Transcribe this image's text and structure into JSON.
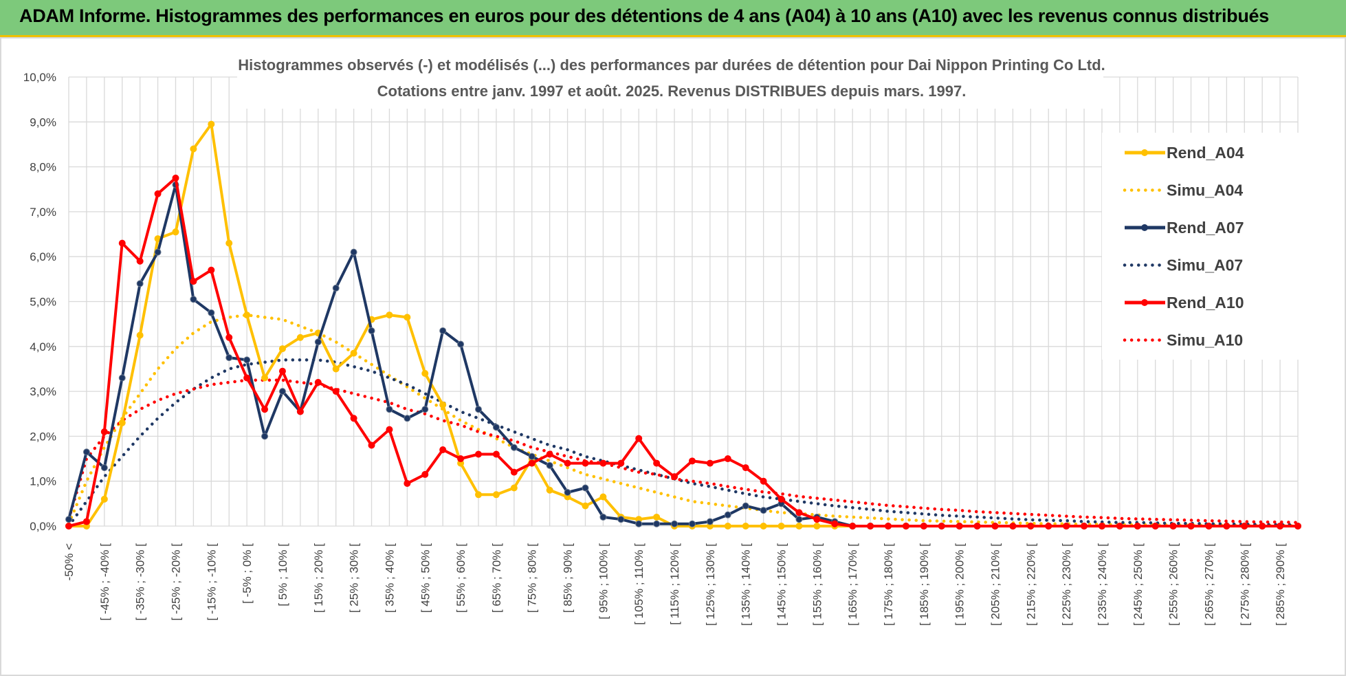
{
  "header": {
    "title": "ADAM Informe. Histogrammes des performances en euros pour des détentions de 4 ans (A04) à 10 ans (A10) avec les revenus connus distribués"
  },
  "colors": {
    "banner": "#7dc97b",
    "banner_border": "#f0c000",
    "A04": "#ffc000",
    "A07": "#1f3864",
    "A10": "#ff0000",
    "grid": "#d9d9d9"
  },
  "chart_data": {
    "type": "line",
    "title": "Histogrammes observés (-) et modélisés (...) des performances par durées de détention pour Dai Nippon Printing Co Ltd.",
    "subtitle": "Cotations entre janv. 1997 et août. 2025. Revenus DISTRIBUES depuis mars. 1997.",
    "xlabel": "",
    "ylabel": "",
    "ylim": [
      0,
      10
    ],
    "y_ticks": [
      "0,0%",
      "1,0%",
      "2,0%",
      "3,0%",
      "4,0%",
      "5,0%",
      "6,0%",
      "7,0%",
      "8,0%",
      "9,0%",
      "10,0%"
    ],
    "grid": true,
    "legend_position": "right",
    "x_tick_labels": [
      "-50% <",
      "[ -45% ; -40% [",
      "[ -35% ; -30% [",
      "[ -25% ; -20% [",
      "[ -15% ; -10% [",
      "[ -5% ; 0% [",
      "[ 5% ; 10% [",
      "[ 15% ; 20% [",
      "[ 25% ; 30% [",
      "[ 35% ; 40% [",
      "[ 45% ; 50% [",
      "[ 55% ; 60% [",
      "[ 65% ; 70% [",
      "[ 75% ; 80% [",
      "[ 85% ; 90% [",
      "[ 95% ; 100% [",
      "[ 105% ; 110% [",
      "[ 115% ; 120% [",
      "[ 125% ; 130% [",
      "[ 135% ; 140% [",
      "[ 145% ; 150% [",
      "[ 155% ; 160% [",
      "[ 165% ; 170% [",
      "[ 175% ; 180% [",
      "[ 185% ; 190% [",
      "[ 195% ; 200% [",
      "[ 205% ; 210% [",
      "[ 215% ; 220% [",
      "[ 225% ; 230% [",
      "[ 235% ; 240% [",
      "[ 245% ; 250% [",
      "[ 255% ; 260% [",
      "[ 265% ; 270% [",
      "[ 275% ; 280% [",
      "[ 285% ; 290% ["
    ],
    "series": [
      {
        "name": "Rend_A04",
        "style": "solid",
        "color": "#ffc000",
        "values": [
          0.0,
          0.0,
          0.6,
          2.3,
          4.25,
          6.4,
          6.55,
          8.4,
          8.95,
          6.3,
          4.7,
          3.3,
          3.95,
          4.2,
          4.3,
          3.5,
          3.85,
          4.6,
          4.7,
          4.65,
          3.4,
          2.7,
          1.4,
          0.7,
          0.7,
          0.85,
          1.5,
          0.8,
          0.65,
          0.45,
          0.65,
          0.2,
          0.15,
          0.2,
          0.0,
          0.0,
          0.0,
          0.0,
          0.0,
          0.0,
          0.0,
          0.0,
          0.0,
          0.0,
          0.0,
          0.0,
          0.0,
          0.0,
          0.0,
          0.0,
          0.0,
          0.0,
          0.0,
          0.0,
          0.0,
          0.0,
          0.0,
          0.0,
          0.0,
          0.0,
          0.0,
          0.0,
          0.0,
          0.0,
          0.0,
          0.0,
          0.0,
          0.0,
          0.0,
          0.0
        ]
      },
      {
        "name": "Simu_A04",
        "style": "dotted",
        "color": "#ffc000",
        "values": [
          0.05,
          1.0,
          1.75,
          2.4,
          2.95,
          3.5,
          3.95,
          4.3,
          4.55,
          4.65,
          4.7,
          4.65,
          4.6,
          4.45,
          4.3,
          4.1,
          3.85,
          3.6,
          3.35,
          3.1,
          2.85,
          2.6,
          2.35,
          2.15,
          1.95,
          1.75,
          1.6,
          1.45,
          1.3,
          1.15,
          1.05,
          0.95,
          0.85,
          0.75,
          0.65,
          0.55,
          0.5,
          0.45,
          0.4,
          0.35,
          0.3,
          0.28,
          0.25,
          0.22,
          0.2,
          0.18,
          0.16,
          0.14,
          0.12,
          0.11,
          0.1,
          0.09,
          0.08,
          0.07,
          0.06,
          0.05,
          0.05,
          0.04,
          0.04,
          0.03,
          0.03,
          0.03,
          0.02,
          0.02,
          0.02,
          0.02,
          0.01,
          0.01,
          0.01,
          0.01
        ]
      },
      {
        "name": "Rend_A07",
        "style": "solid",
        "color": "#1f3864",
        "values": [
          0.15,
          1.65,
          1.3,
          3.3,
          5.4,
          6.1,
          7.6,
          5.05,
          4.75,
          3.75,
          3.7,
          2.0,
          3.0,
          2.55,
          4.1,
          5.3,
          6.1,
          4.35,
          2.6,
          2.4,
          2.6,
          4.35,
          4.05,
          2.6,
          2.2,
          1.75,
          1.55,
          1.35,
          0.75,
          0.85,
          0.2,
          0.15,
          0.05,
          0.05,
          0.05,
          0.05,
          0.1,
          0.25,
          0.45,
          0.35,
          0.5,
          0.15,
          0.2,
          0.1,
          0.0,
          0.0,
          0.0,
          0.0,
          0.0,
          0.0,
          0.0,
          0.0,
          0.0,
          0.0,
          0.0,
          0.0,
          0.0,
          0.0,
          0.0,
          0.0,
          0.0,
          0.0,
          0.0,
          0.0,
          0.0,
          0.0,
          0.0,
          0.0,
          0.0,
          0.0
        ]
      },
      {
        "name": "Simu_A07",
        "style": "dotted",
        "color": "#1f3864",
        "values": [
          0.0,
          0.55,
          1.1,
          1.55,
          2.0,
          2.4,
          2.75,
          3.05,
          3.3,
          3.5,
          3.6,
          3.65,
          3.7,
          3.7,
          3.7,
          3.65,
          3.55,
          3.45,
          3.3,
          3.15,
          2.95,
          2.75,
          2.55,
          2.4,
          2.25,
          2.1,
          1.95,
          1.8,
          1.7,
          1.55,
          1.45,
          1.35,
          1.25,
          1.15,
          1.05,
          0.95,
          0.88,
          0.8,
          0.72,
          0.65,
          0.6,
          0.55,
          0.5,
          0.45,
          0.41,
          0.37,
          0.33,
          0.3,
          0.27,
          0.24,
          0.22,
          0.2,
          0.18,
          0.16,
          0.14,
          0.13,
          0.12,
          0.1,
          0.09,
          0.08,
          0.08,
          0.07,
          0.06,
          0.06,
          0.05,
          0.05,
          0.04,
          0.04,
          0.03,
          0.03
        ]
      },
      {
        "name": "Rend_A10",
        "style": "solid",
        "color": "#ff0000",
        "values": [
          0.0,
          0.1,
          2.1,
          6.3,
          5.9,
          7.4,
          7.75,
          5.45,
          5.7,
          4.2,
          3.3,
          2.6,
          3.45,
          2.55,
          3.2,
          3.0,
          2.4,
          1.8,
          2.15,
          0.95,
          1.15,
          1.7,
          1.5,
          1.6,
          1.6,
          1.2,
          1.4,
          1.6,
          1.4,
          1.4,
          1.4,
          1.4,
          1.95,
          1.4,
          1.1,
          1.45,
          1.4,
          1.5,
          1.3,
          1.0,
          0.6,
          0.3,
          0.15,
          0.05,
          0.0,
          0.0,
          0.0,
          0.0,
          0.0,
          0.0,
          0.0,
          0.0,
          0.0,
          0.0,
          0.0,
          0.0,
          0.0,
          0.0,
          0.0,
          0.0,
          0.0,
          0.0,
          0.0,
          0.0,
          0.0,
          0.0,
          0.0,
          0.0,
          0.0,
          0.0
        ]
      },
      {
        "name": "Simu_A10",
        "style": "dotted",
        "color": "#ff0000",
        "values": [
          0.15,
          1.5,
          2.0,
          2.35,
          2.6,
          2.8,
          2.95,
          3.05,
          3.15,
          3.2,
          3.25,
          3.25,
          3.25,
          3.2,
          3.15,
          3.05,
          2.95,
          2.85,
          2.75,
          2.6,
          2.5,
          2.35,
          2.25,
          2.1,
          2.0,
          1.9,
          1.75,
          1.65,
          1.55,
          1.45,
          1.4,
          1.3,
          1.2,
          1.15,
          1.05,
          1.0,
          0.95,
          0.88,
          0.82,
          0.76,
          0.72,
          0.66,
          0.62,
          0.58,
          0.54,
          0.5,
          0.46,
          0.43,
          0.4,
          0.37,
          0.35,
          0.32,
          0.3,
          0.28,
          0.26,
          0.24,
          0.22,
          0.2,
          0.19,
          0.17,
          0.16,
          0.15,
          0.14,
          0.13,
          0.12,
          0.11,
          0.1,
          0.09,
          0.09,
          0.08
        ]
      }
    ]
  }
}
